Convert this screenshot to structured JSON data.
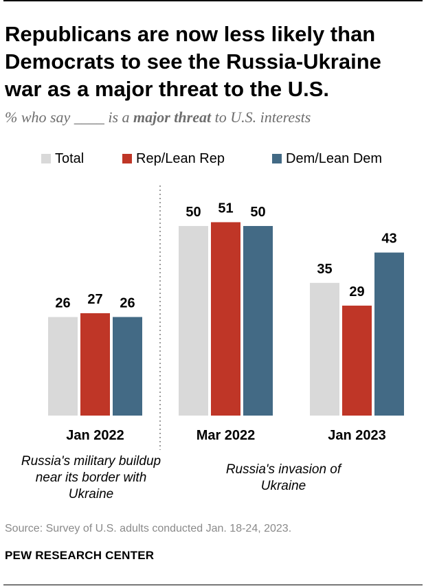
{
  "title": "Republicans are now less likely than Democrats to see the Russia-Ukraine war as a major threat to the U.S.",
  "subtitle": {
    "before": "% who say ____ is a ",
    "emphasis": "major threat",
    "after": " to U.S. interests"
  },
  "chart_data": {
    "type": "bar",
    "categories": [
      "Jan 2022",
      "Mar 2022",
      "Jan 2023"
    ],
    "series": [
      {
        "name": "Total",
        "color": "#d9d9d9",
        "values": [
          26,
          50,
          35
        ]
      },
      {
        "name": "Rep/Lean Rep",
        "color": "#bf3627",
        "values": [
          27,
          51,
          29
        ]
      },
      {
        "name": "Dem/Lean Dem",
        "color": "#436a85",
        "values": [
          26,
          50,
          43
        ]
      }
    ],
    "ylim": [
      0,
      55
    ],
    "legend_position": "top",
    "grid": false,
    "group_captions": [
      "Russia's military buildup near its border with Ukraine",
      "Russia's invasion of Ukraine"
    ]
  },
  "source": "Source: Survey of U.S. adults conducted Jan. 18-24, 2023.",
  "organization": "PEW RESEARCH CENTER"
}
